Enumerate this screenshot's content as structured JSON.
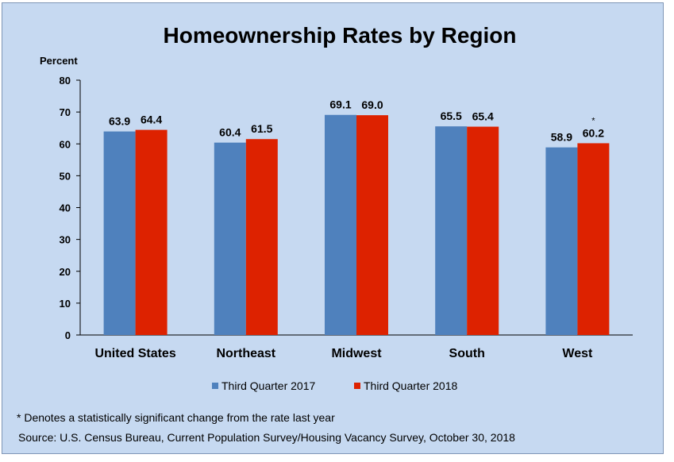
{
  "chart_data": {
    "type": "bar",
    "title": "Homeownership Rates by Region",
    "ylabel": "Percent",
    "xlabel": "",
    "ylim": [
      0,
      80
    ],
    "yticks": [
      0,
      10,
      20,
      30,
      40,
      50,
      60,
      70,
      80
    ],
    "categories": [
      "United States",
      "Northeast",
      "Midwest",
      "South",
      "West"
    ],
    "series": [
      {
        "name": "Third Quarter 2017",
        "color": "#4f81bd",
        "values": [
          63.9,
          60.4,
          69.1,
          65.5,
          58.9
        ],
        "labels": [
          "63.9",
          "60.4",
          "69.1",
          "65.5",
          "58.9"
        ]
      },
      {
        "name": "Third Quarter 2018",
        "color": "#dd2200",
        "values": [
          64.4,
          61.5,
          69.0,
          65.4,
          60.2
        ],
        "labels": [
          "64.4",
          "61.5",
          "69.0",
          "65.4",
          "60.2"
        ]
      }
    ],
    "significance_marker": {
      "symbol": "*",
      "category": "West",
      "series": "Third Quarter 2018"
    },
    "legend_position": "bottom",
    "grid": false
  },
  "notes": {
    "significance": "* Denotes a statistically significant change from the rate last year",
    "source": "Source: U.S. Census Bureau, Current Population Survey/Housing Vacancy Survey, October 30, 2018"
  }
}
